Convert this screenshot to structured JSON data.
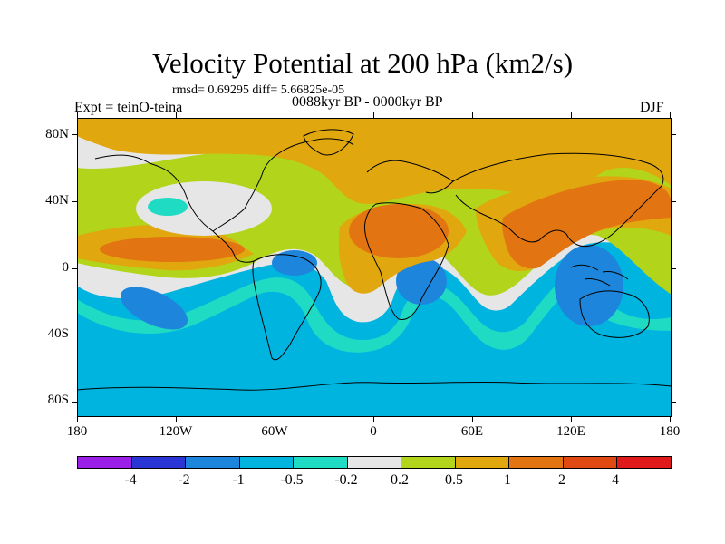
{
  "header": {
    "title": "Velocity Potential at 200 hPa (km2/s)",
    "stats": "rmsd= 0.69295 diff= 5.66825e-05",
    "experiment": "Expt = teinO-teina",
    "period": "0088kyr BP - 0000kyr BP",
    "season": "DJF"
  },
  "axes": {
    "latitude_labels": [
      "80N",
      "40N",
      "0",
      "40S",
      "80S"
    ],
    "longitude_labels": [
      "180",
      "120W",
      "60W",
      "0",
      "60E",
      "120E",
      "180"
    ]
  },
  "colorbar": {
    "labels": [
      "-4",
      "-2",
      "-1",
      "-0.5",
      "-0.2",
      "0.2",
      "0.5",
      "1",
      "2",
      "4"
    ],
    "colors": [
      "#9b1fe6",
      "#2a35d5",
      "#1d86dc",
      "#00b4e0",
      "#1fdbc4",
      "#e6e6e6",
      "#b2d41a",
      "#e0a70f",
      "#e27511",
      "#e04a12",
      "#e01a1a"
    ]
  },
  "fields": {
    "ocean_blue": "#00b4e0",
    "coastline_color": "#000000"
  }
}
